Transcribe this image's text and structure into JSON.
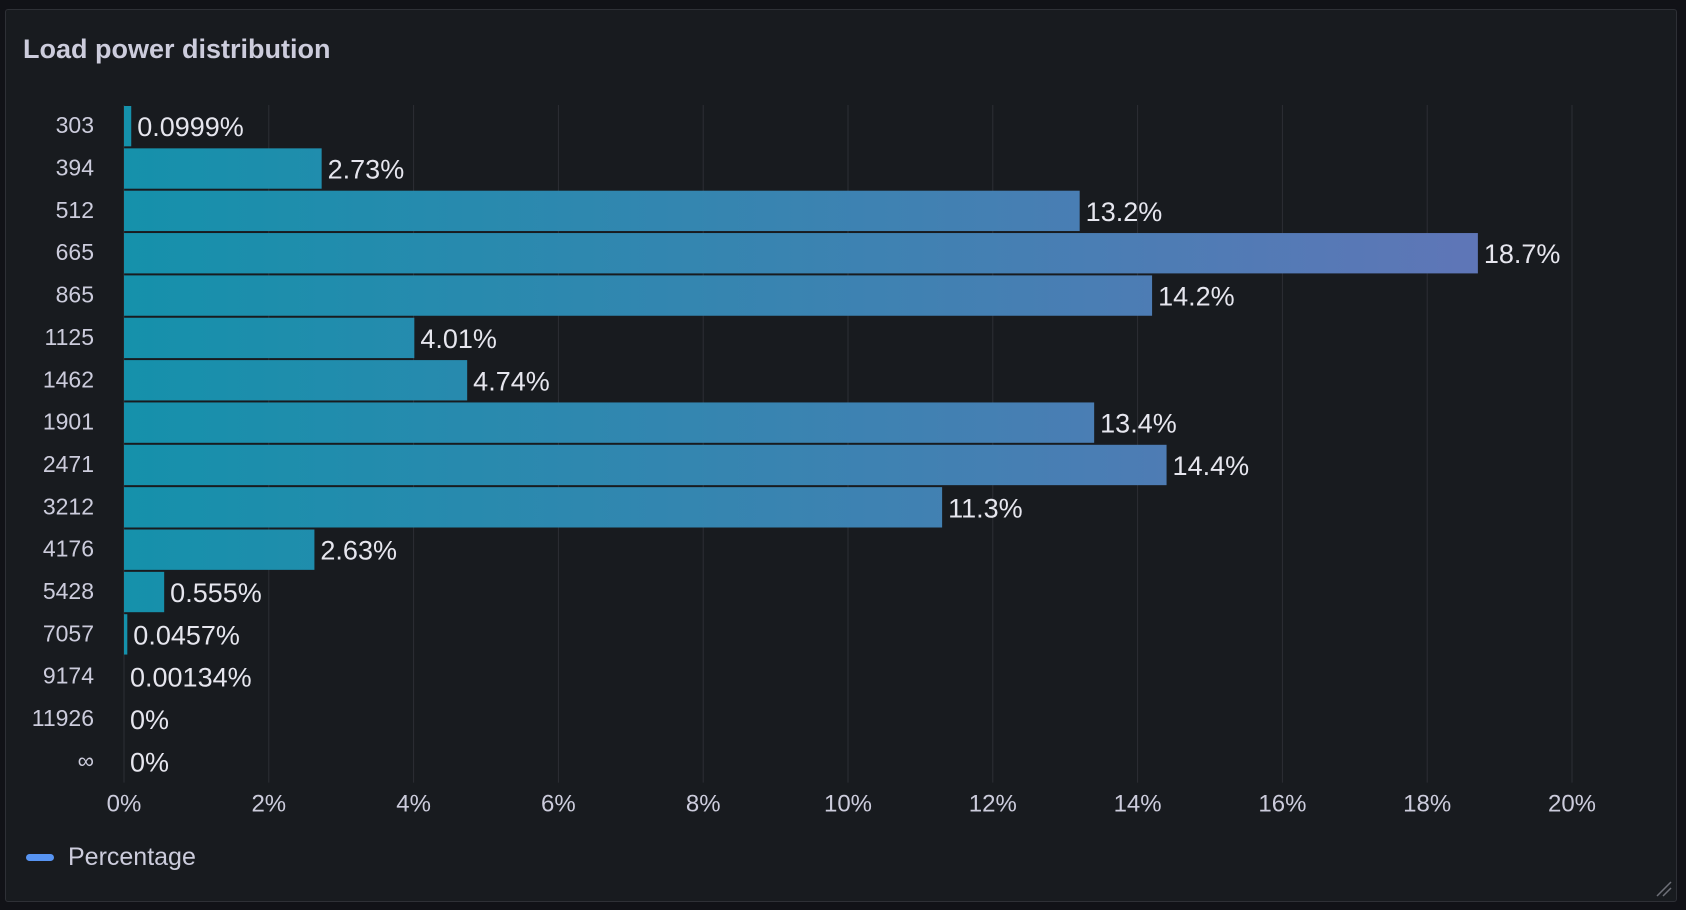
{
  "panel": {
    "title": "Load power distribution"
  },
  "chart_data": {
    "type": "bar",
    "orientation": "horizontal",
    "categories": [
      "303",
      "394",
      "512",
      "665",
      "865",
      "1125",
      "1462",
      "1901",
      "2471",
      "3212",
      "4176",
      "5428",
      "7057",
      "9174",
      "11926",
      "∞"
    ],
    "series": [
      {
        "name": "Percentage",
        "values": [
          0.0999,
          2.73,
          13.2,
          18.7,
          14.2,
          4.01,
          4.74,
          13.4,
          14.4,
          11.3,
          2.63,
          0.555,
          0.0457,
          0.00134,
          0,
          0
        ],
        "labels": [
          "0.0999%",
          "2.73%",
          "13.2%",
          "18.7%",
          "14.2%",
          "4.01%",
          "4.74%",
          "13.4%",
          "14.4%",
          "11.3%",
          "2.63%",
          "0.555%",
          "0.0457%",
          "0.00134%",
          "0%",
          "0%"
        ]
      }
    ],
    "x_ticks": [
      "0%",
      "2%",
      "4%",
      "6%",
      "8%",
      "10%",
      "12%",
      "14%",
      "16%",
      "18%",
      "20%"
    ],
    "xlim": [
      0,
      20
    ],
    "xlabel": "",
    "ylabel": "",
    "grid": true,
    "legend_position": "bottom-left",
    "colors": {
      "bar_low": "#1591ab",
      "bar_high": "#6571b5",
      "legend": "#5794f2",
      "text": "#ccccdc",
      "grid": "#2c2f35"
    }
  },
  "legend": {
    "label": "Percentage"
  }
}
